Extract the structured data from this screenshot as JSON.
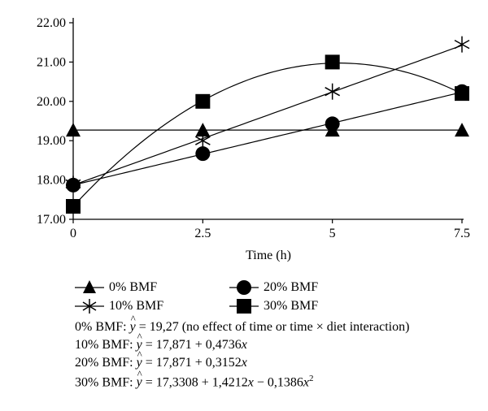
{
  "chart_data": {
    "type": "line",
    "xlabel": "Time (h)",
    "ylabel": "",
    "x": [
      0,
      2.5,
      5,
      7.5
    ],
    "x_tick_labels": [
      "0",
      "2.5",
      "5",
      "7.5"
    ],
    "xlim": [
      0,
      7.5
    ],
    "ylim": [
      17,
      22
    ],
    "y_tick_labels": [
      "17.00",
      "18.00",
      "19.00",
      "20.00",
      "21.00",
      "22.00"
    ],
    "grid": false,
    "legend_position": "bottom",
    "series": [
      {
        "name": "0% BMF",
        "marker": "triangle",
        "values": [
          19.27,
          19.27,
          19.27,
          19.27
        ],
        "fit": [
          19.27,
          0,
          0
        ]
      },
      {
        "name": "10% BMF",
        "marker": "asterisk",
        "values": [
          17.9,
          19.0,
          20.25,
          21.45
        ],
        "fit": [
          17.871,
          0.4736,
          0
        ]
      },
      {
        "name": "20% BMF",
        "marker": "circle",
        "values": [
          17.87,
          18.67,
          19.43,
          20.25
        ],
        "fit": [
          17.871,
          0.3152,
          0
        ]
      },
      {
        "name": "30% BMF",
        "marker": "square",
        "values": [
          17.33,
          20.0,
          21.0,
          20.2
        ],
        "fit": [
          17.3308,
          1.4212,
          -0.1386
        ]
      }
    ],
    "equations": [
      {
        "prefix": "0% BMF: ",
        "rhs": " = 19,27 (no effect of time or time × diet interaction)"
      },
      {
        "prefix": "10% BMF: ",
        "rhs": " = 17,871 + 0,4736"
      },
      {
        "prefix": "20% BMF: ",
        "rhs": " = 17,871 + 0,3152"
      },
      {
        "prefix": "30% BMF: ",
        "rhs": " = 17,3308 + 1,4212"
      }
    ],
    "eq30_mid": " − 0,1386",
    "eq_var": "x",
    "eq_yhat": "y",
    "eq_sup": "2"
  }
}
